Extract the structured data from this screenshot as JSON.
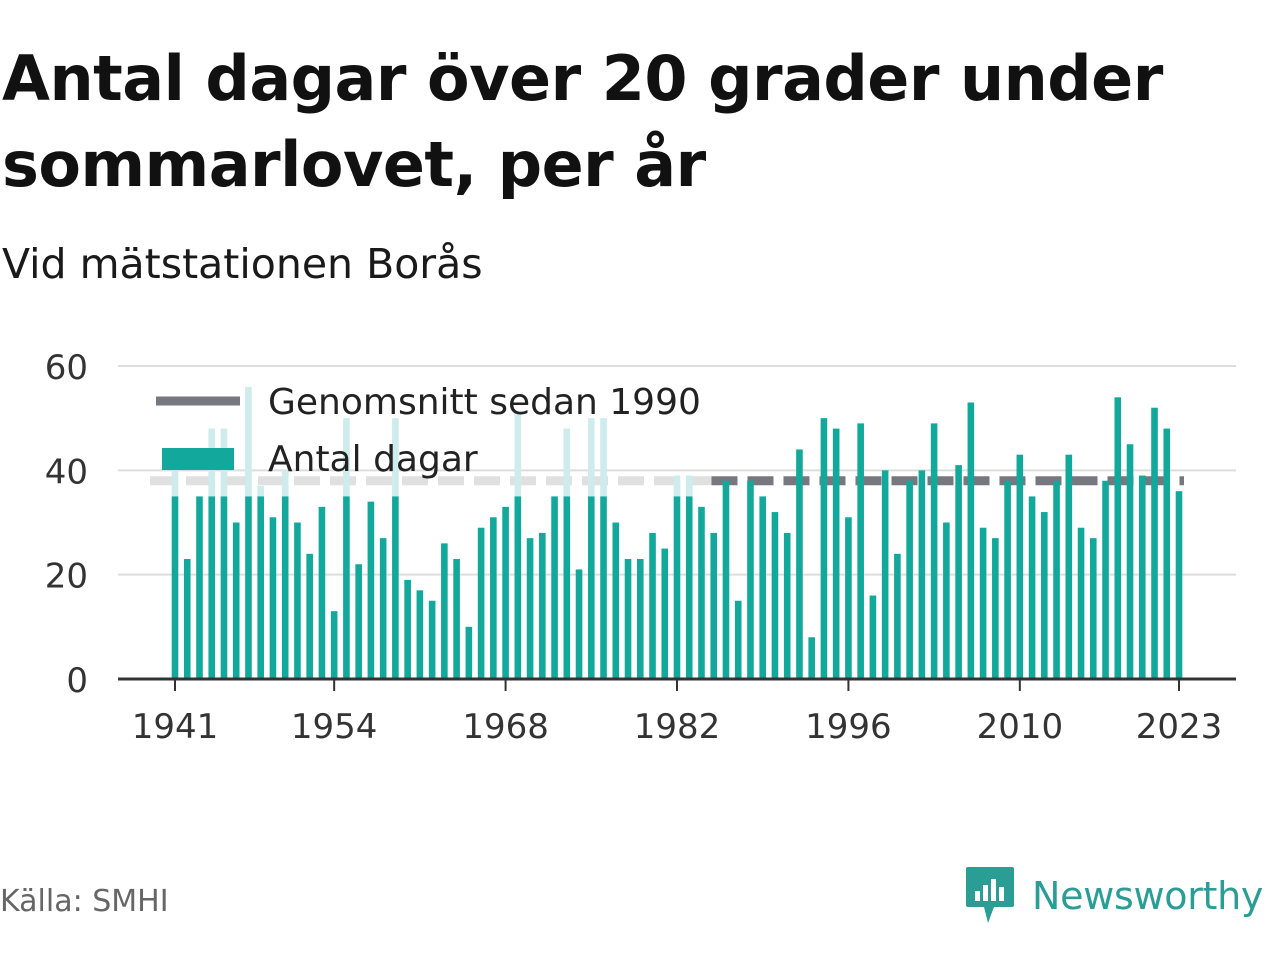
{
  "title": "Antal dagar över 20 grader under sommarlovet, per år",
  "subtitle": "Vid mätstationen Borås",
  "source": "Källa: SMHI",
  "brand": "Newsworthy",
  "colors": {
    "bar": "#12a89b",
    "bar_faded": "#cdeceb",
    "avg_line": "#77777f",
    "avg_line_faded": "#e0e0e0",
    "grid": "#dddddd",
    "axis": "#333333",
    "brand": "#2a9d95"
  },
  "chart_data": {
    "type": "bar",
    "x": [
      1941,
      1942,
      1943,
      1944,
      1945,
      1946,
      1947,
      1948,
      1949,
      1950,
      1951,
      1952,
      1953,
      1954,
      1955,
      1956,
      1957,
      1958,
      1959,
      1960,
      1961,
      1962,
      1963,
      1964,
      1965,
      1966,
      1967,
      1968,
      1969,
      1970,
      1971,
      1972,
      1973,
      1974,
      1975,
      1976,
      1977,
      1978,
      1979,
      1980,
      1981,
      1982,
      1983,
      1984,
      1985,
      1986,
      1987,
      1988,
      1989,
      1990,
      1991,
      1992,
      1993,
      1994,
      1995,
      1996,
      1997,
      1998,
      1999,
      2000,
      2001,
      2002,
      2003,
      2004,
      2005,
      2006,
      2007,
      2008,
      2009,
      2010,
      2011,
      2012,
      2013,
      2014,
      2015,
      2016,
      2017,
      2018,
      2019,
      2020,
      2021,
      2022,
      2023
    ],
    "series": [
      {
        "name": "Antal dagar",
        "values": [
          40,
          23,
          35,
          48,
          48,
          30,
          56,
          37,
          31,
          40,
          30,
          24,
          33,
          13,
          50,
          22,
          34,
          27,
          50,
          19,
          17,
          15,
          26,
          23,
          10,
          29,
          31,
          33,
          51,
          27,
          28,
          35,
          48,
          21,
          50,
          50,
          30,
          23,
          23,
          28,
          25,
          39,
          39,
          33,
          28,
          38,
          15,
          38,
          35,
          32,
          28,
          44,
          8,
          50,
          48,
          31,
          49,
          16,
          40,
          24,
          38,
          40,
          49,
          30,
          41,
          53,
          29,
          27,
          38,
          43,
          35,
          32,
          38,
          43,
          29,
          27,
          38,
          54,
          45,
          39,
          52,
          48,
          36
        ]
      }
    ],
    "average": {
      "name": "Genomsnitt sedan 1990",
      "value": 38
    },
    "legend_occlusion": {
      "max_value": 35,
      "from_year": 1941,
      "to_year": 1984
    },
    "x_ticks": [
      1941,
      1954,
      1968,
      1982,
      1996,
      2010,
      2023
    ],
    "y_ticks": [
      0,
      20,
      40,
      60
    ],
    "ylim": [
      0,
      60
    ],
    "legend": [
      "Genomsnitt sedan 1990",
      "Antal dagar"
    ],
    "legend_position": "top-left",
    "grid": true
  }
}
